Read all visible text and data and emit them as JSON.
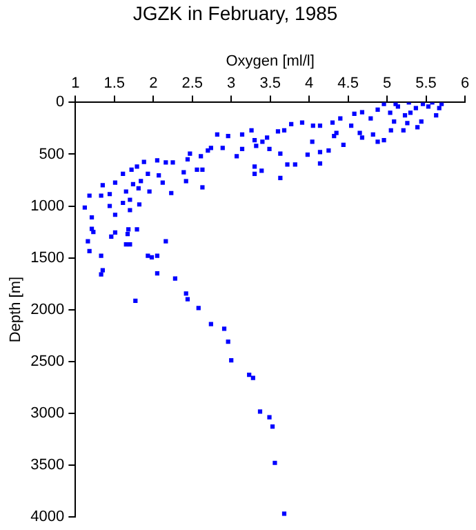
{
  "chart_data": {
    "type": "scatter",
    "title": "JGZK in February, 1985",
    "xlabel": "Oxygen [ml/l]",
    "ylabel": "Depth [m]",
    "xlim": [
      1,
      6
    ],
    "xticks": [
      1,
      1.5,
      2,
      2.5,
      3,
      3.5,
      4,
      4.5,
      5,
      5.5,
      6
    ],
    "ylim": [
      4000,
      0
    ],
    "yticks": [
      0,
      500,
      1000,
      1500,
      2000,
      2500,
      3000,
      3500,
      4000
    ],
    "grid": false,
    "marker": "square",
    "legend": false,
    "series": [
      {
        "color": "#0000ff",
        "x": [
          1.77,
          2.42,
          2.44,
          2.58,
          2.74,
          2.91,
          2.96,
          3.0,
          3.23,
          3.28,
          3.37,
          3.49,
          3.53,
          3.56,
          3.68,
          1.12,
          1.18,
          1.21,
          1.23,
          1.16,
          1.18,
          1.33,
          1.35,
          1.33,
          1.21,
          1.33,
          1.35,
          1.44,
          1.44,
          1.46,
          1.51,
          1.51,
          1.51,
          1.61,
          1.65,
          1.61,
          1.67,
          1.65,
          1.7,
          1.68,
          1.7,
          1.7,
          1.72,
          1.74,
          1.79,
          1.81,
          1.79,
          1.82,
          1.84,
          1.88,
          1.93,
          1.95,
          1.93,
          1.98,
          2.05,
          2.05,
          2.07,
          2.12,
          2.16,
          2.23,
          2.25,
          2.16,
          2.05,
          2.28,
          2.39,
          2.42,
          2.44,
          2.47,
          2.56,
          2.63,
          2.61,
          2.63,
          2.7,
          2.74,
          2.82,
          2.89,
          2.96,
          3.07,
          3.14,
          3.3,
          3.3,
          3.3,
          3.39,
          3.46,
          3.49,
          3.6,
          3.63,
          3.68,
          3.63,
          3.72,
          3.82,
          3.98,
          4.14,
          4.14,
          4.25,
          4.04,
          4.05,
          3.77,
          3.91,
          4.14,
          4.3,
          4.32,
          4.4,
          4.35,
          4.54,
          4.58,
          4.68,
          4.65,
          4.79,
          4.82,
          4.88,
          4.96,
          5.04,
          5.09,
          5.14,
          5.23,
          5.3,
          5.37,
          5.44,
          5.53,
          5.58,
          5.67,
          5.7,
          5.63,
          5.46,
          5.28,
          5.11,
          5.26,
          5.39,
          5.21,
          5.05,
          4.96,
          4.88,
          4.68,
          4.44,
          3.26,
          3.14,
          3.4,
          3.32
        ],
        "values": [
          1915,
          1845,
          1900,
          1985,
          2140,
          2185,
          2310,
          2490,
          2630,
          2660,
          2985,
          3040,
          3130,
          3480,
          3970,
          1015,
          900,
          1110,
          1250,
          1340,
          1435,
          1480,
          1620,
          1660,
          1220,
          900,
          800,
          885,
          1000,
          1295,
          1255,
          1085,
          775,
          690,
          860,
          970,
          1270,
          1370,
          1370,
          1225,
          940,
          1040,
          650,
          790,
          620,
          830,
          1225,
          985,
          760,
          575,
          690,
          860,
          1480,
          1495,
          1480,
          560,
          705,
          775,
          580,
          875,
          580,
          1340,
          1650,
          1700,
          675,
          760,
          550,
          495,
          650,
          650,
          520,
          820,
          465,
          440,
          310,
          440,
          325,
          520,
          450,
          365,
          620,
          690,
          660,
          340,
          450,
          280,
          495,
          270,
          730,
          600,
          600,
          505,
          590,
          480,
          465,
          380,
          225,
          210,
          195,
          225,
          195,
          325,
          155,
          295,
          225,
          110,
          95,
          295,
          155,
          310,
          70,
          15,
          100,
          185,
          40,
          125,
          100,
          55,
          185,
          40,
          0,
          55,
          15,
          125,
          15,
          0,
          15,
          200,
          240,
          270,
          270,
          365,
          380,
          340,
          410,
          270,
          310,
          380,
          420
        ]
      }
    ]
  }
}
